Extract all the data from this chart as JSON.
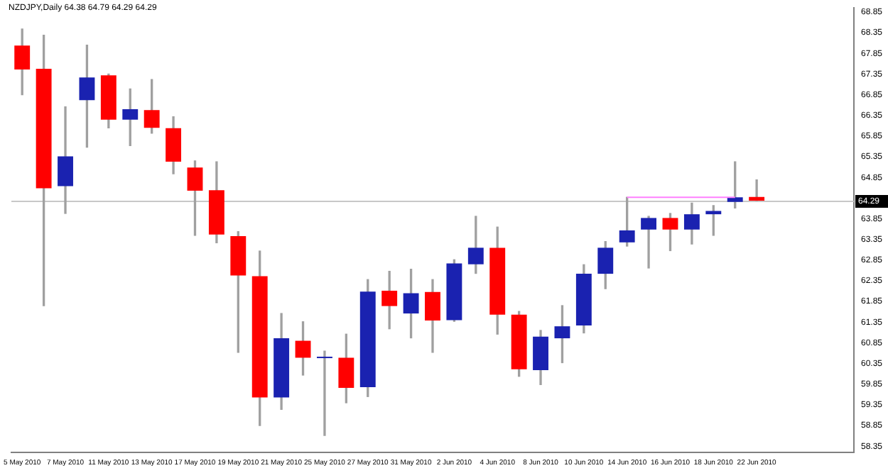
{
  "chart_data": {
    "type": "candlestick",
    "title": "NZDJPY,Daily  64.38 64.79 64.29 64.29",
    "categories": [
      "5 May 2010",
      null,
      "7 May 2010",
      null,
      "11 May 2010",
      null,
      "13 May 2010",
      null,
      "17 May 2010",
      null,
      "19 May 2010",
      null,
      "21 May 2010",
      null,
      "25 May 2010",
      null,
      "27 May 2010",
      null,
      "31 May 2010",
      null,
      "2 Jun 2010",
      null,
      "4 Jun 2010",
      null,
      "8 Jun 2010",
      null,
      "10 Jun 2010",
      null,
      "14 Jun 2010",
      null,
      "16 Jun 2010",
      null,
      "18 Jun 2010",
      null,
      "22 Jun 2010",
      null,
      null,
      null,
      null
    ],
    "ohlc": [
      [
        68.04,
        68.44,
        66.85,
        67.46
      ],
      [
        67.48,
        68.29,
        61.75,
        64.59
      ],
      [
        64.64,
        66.56,
        63.98,
        65.36
      ],
      [
        66.72,
        68.05,
        65.58,
        67.27
      ],
      [
        67.32,
        67.35,
        66.05,
        66.25
      ],
      [
        66.25,
        66.99,
        65.62,
        66.5
      ],
      [
        66.48,
        67.22,
        65.92,
        66.05
      ],
      [
        66.04,
        66.32,
        64.94,
        65.23
      ],
      [
        65.09,
        65.25,
        63.45,
        64.53
      ],
      [
        64.54,
        65.23,
        63.27,
        63.47
      ],
      [
        63.43,
        63.54,
        60.62,
        62.48
      ],
      [
        62.46,
        63.07,
        58.85,
        59.53
      ],
      [
        59.53,
        61.56,
        59.24,
        60.96
      ],
      [
        60.9,
        61.36,
        60.07,
        60.49
      ],
      [
        60.48,
        60.65,
        58.61,
        60.5
      ],
      [
        60.49,
        61.06,
        59.4,
        59.76
      ],
      [
        59.78,
        62.38,
        59.55,
        62.09
      ],
      [
        62.11,
        62.58,
        61.19,
        61.74
      ],
      [
        61.56,
        62.63,
        60.97,
        62.05
      ],
      [
        62.08,
        62.38,
        60.62,
        61.39
      ],
      [
        61.4,
        62.86,
        61.37,
        62.77
      ],
      [
        62.75,
        63.91,
        62.53,
        63.15
      ],
      [
        63.15,
        63.65,
        61.06,
        61.53
      ],
      [
        61.53,
        61.61,
        60.04,
        60.21
      ],
      [
        60.19,
        61.15,
        59.84,
        61.0
      ],
      [
        60.96,
        61.75,
        60.37,
        61.25
      ],
      [
        61.27,
        62.74,
        61.09,
        62.52
      ],
      [
        62.52,
        63.3,
        62.16,
        63.15
      ],
      [
        63.28,
        64.37,
        63.19,
        63.57
      ],
      [
        63.59,
        63.91,
        62.66,
        63.87
      ],
      [
        63.87,
        63.98,
        63.08,
        63.59
      ],
      [
        63.59,
        64.23,
        63.24,
        63.96
      ],
      [
        63.96,
        64.17,
        63.45,
        64.04
      ],
      [
        64.26,
        65.23,
        64.11,
        64.37
      ],
      [
        64.38,
        64.79,
        64.29,
        64.29
      ],
      null,
      null,
      null,
      null
    ],
    "colors": [
      "#ff0000",
      "#ff0000",
      "#1a22b0",
      "#1a22b0",
      "#ff0000",
      "#1a22b0",
      "#ff0000",
      "#ff0000",
      "#ff0000",
      "#ff0000",
      "#ff0000",
      "#ff0000",
      "#1a22b0",
      "#ff0000",
      "#1a22b0",
      "#ff0000",
      "#1a22b0",
      "#ff0000",
      "#1a22b0",
      "#ff0000",
      "#1a22b0",
      "#1a22b0",
      "#ff0000",
      "#ff0000",
      "#1a22b0",
      "#1a22b0",
      "#1a22b0",
      "#1a22b0",
      "#1a22b0",
      "#1a22b0",
      "#ff0000",
      "#1a22b0",
      "#1a22b0",
      "#1a22b0",
      "#ff0000",
      null,
      null,
      null,
      null
    ],
    "series": [
      {
        "type": "line",
        "color": "#ff80ff",
        "values": [
          null,
          null,
          null,
          null,
          null,
          null,
          null,
          null,
          null,
          null,
          null,
          null,
          null,
          null,
          null,
          null,
          null,
          null,
          null,
          null,
          null,
          null,
          null,
          null,
          null,
          null,
          null,
          null,
          64.37,
          64.37,
          64.37,
          64.37,
          64.37,
          64.37,
          null,
          null,
          null,
          null,
          null
        ]
      }
    ],
    "ylim": [
      58.2,
      68.95
    ],
    "yticks": [
      68.85,
      68.35,
      67.85,
      67.35,
      66.85,
      66.35,
      65.85,
      65.35,
      64.85,
      63.85,
      63.35,
      62.85,
      62.35,
      61.85,
      61.35,
      60.85,
      60.35,
      59.85,
      59.35,
      58.85,
      58.35
    ],
    "ref_lines": [
      {
        "axis": "y",
        "value": 64.29,
        "label": "64.29",
        "color": "#c8c8c8"
      }
    ],
    "grid": false,
    "legend": false
  }
}
